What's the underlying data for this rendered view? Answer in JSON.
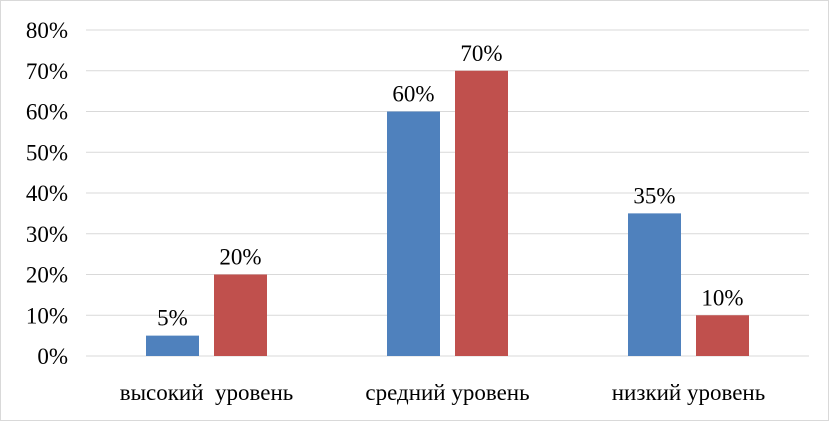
{
  "chart_data": {
    "type": "bar",
    "title": "",
    "xlabel": "",
    "ylabel": "",
    "categories": [
      "высокий  уровень",
      "средний уровень",
      "низкий уровень"
    ],
    "series": [
      {
        "values": [
          5,
          60,
          35
        ],
        "color": "#4f81bd"
      },
      {
        "values": [
          20,
          70,
          10
        ],
        "color": "#c0504d"
      }
    ],
    "ylim": [
      0,
      80
    ],
    "y_ticks": [
      0,
      10,
      20,
      30,
      40,
      50,
      60,
      70,
      80
    ],
    "y_tick_labels": [
      "0%",
      "10%",
      "20%",
      "30%",
      "40%",
      "50%",
      "60%",
      "70%",
      "80%"
    ],
    "data_labels": [
      [
        "5%",
        "60%",
        "35%"
      ],
      [
        "20%",
        "70%",
        "10%"
      ]
    ],
    "gridlines": true,
    "gridline_color": "#d9d9d9",
    "legend": "none"
  }
}
